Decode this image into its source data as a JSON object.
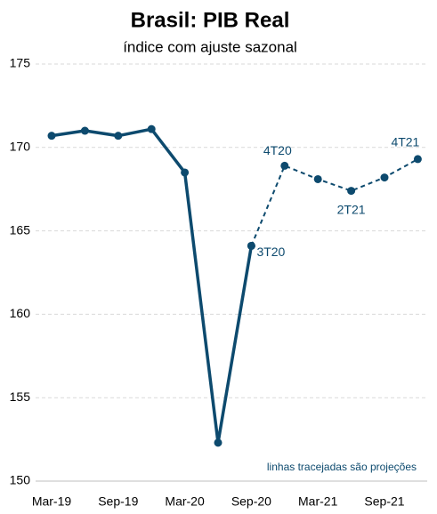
{
  "chart_data": {
    "type": "line",
    "title": "Brasil: PIB Real",
    "subtitle": "índice com ajuste sazonal",
    "note": "linhas tracejadas são projeções",
    "categories": [
      "Mar-19",
      null,
      "Sep-19",
      null,
      "Mar-20",
      null,
      "Sep-20",
      null,
      "Mar-21",
      null,
      "Sep-21",
      null
    ],
    "series": [
      {
        "name": "PIB",
        "color": "#0d4a6e",
        "dashed": false,
        "values": [
          170.7,
          171.0,
          170.7,
          171.1,
          168.5,
          152.3,
          164.1,
          null,
          null,
          null,
          null,
          null
        ]
      },
      {
        "name": "Projeção",
        "color": "#0d4a6e",
        "dashed": true,
        "values": [
          null,
          null,
          null,
          null,
          null,
          null,
          164.1,
          168.9,
          168.1,
          167.4,
          168.2,
          169.3
        ],
        "point_labels": [
          null,
          null,
          null,
          null,
          null,
          null,
          "3T20",
          "4T20",
          null,
          "2T21",
          null,
          "4T21"
        ]
      }
    ],
    "ylim": [
      150,
      175
    ],
    "yticks": [
      150,
      155,
      160,
      165,
      170,
      175
    ],
    "grid": true
  }
}
